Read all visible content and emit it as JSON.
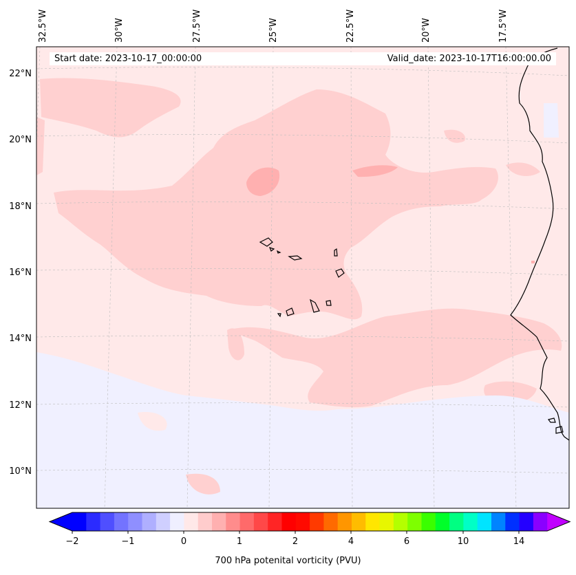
{
  "header": {
    "start_date": "Start date: 2023-10-17_00:00:00",
    "valid_date": "Valid_date: 2023-10-17T16:00:00.00"
  },
  "lon_labels": [
    "32.5°W",
    "30°W",
    "27.5°W",
    "25°W",
    "22.5°W",
    "20°W",
    "17.5°W"
  ],
  "lat_labels": [
    "22°N",
    "20°N",
    "18°N",
    "16°N",
    "14°N",
    "12°N",
    "10°N"
  ],
  "colorbar": {
    "label": "700 hPa potenital vorticity (PVU)",
    "tick_labels": [
      "−2",
      "−1",
      "0",
      "1",
      "2",
      "4",
      "6",
      "10",
      "14"
    ],
    "colors": [
      "#0000ff",
      "#2b2bff",
      "#4f4fff",
      "#7373ff",
      "#8f8fff",
      "#afafff",
      "#cfcfff",
      "#efefff",
      "#ffe8e8",
      "#ffcccc",
      "#ffb0b0",
      "#ff8c8c",
      "#ff6a6a",
      "#ff4848",
      "#ff2525",
      "#ff0000",
      "#ff0a00",
      "#ff3a00",
      "#ff6a00",
      "#ff9600",
      "#ffbc00",
      "#ffe600",
      "#e7f600",
      "#b4ff00",
      "#7eff00",
      "#3aff00",
      "#00ff2a",
      "#00ff82",
      "#00ffc6",
      "#00e4ff",
      "#0084ff",
      "#0030ff",
      "#2400ff",
      "#8a00ff"
    ],
    "extend_low_color": "#0000ff",
    "extend_high_color": "#c000ff"
  },
  "field_colors": {
    "background": "#ffe9e9",
    "light": "#ffd0d0",
    "medium": "#ffb0b0",
    "negative": "#f0f0ff"
  }
}
